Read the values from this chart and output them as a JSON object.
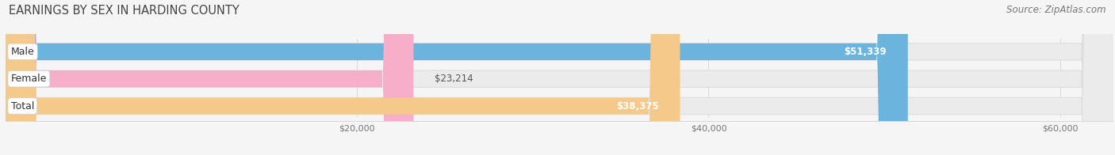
{
  "title": "EARNINGS BY SEX IN HARDING COUNTY",
  "source": "Source: ZipAtlas.com",
  "categories": [
    "Male",
    "Female",
    "Total"
  ],
  "values": [
    51339,
    23214,
    38375
  ],
  "bar_colors": [
    "#6ab4de",
    "#f7aec8",
    "#f5c98a"
  ],
  "value_labels": [
    "$51,339",
    "$23,214",
    "$38,375"
  ],
  "value_label_inside": [
    true,
    false,
    true
  ],
  "xlim": [
    0,
    63000
  ],
  "xticks": [
    20000,
    40000,
    60000
  ],
  "xtick_labels": [
    "$20,000",
    "$40,000",
    "$60,000"
  ],
  "bar_height": 0.62,
  "background_color": "#f5f5f5",
  "track_color": "#ebebeb",
  "track_edge_color": "#dddddd",
  "title_fontsize": 10.5,
  "source_fontsize": 8.5,
  "label_fontsize": 9,
  "value_fontsize": 8.5
}
